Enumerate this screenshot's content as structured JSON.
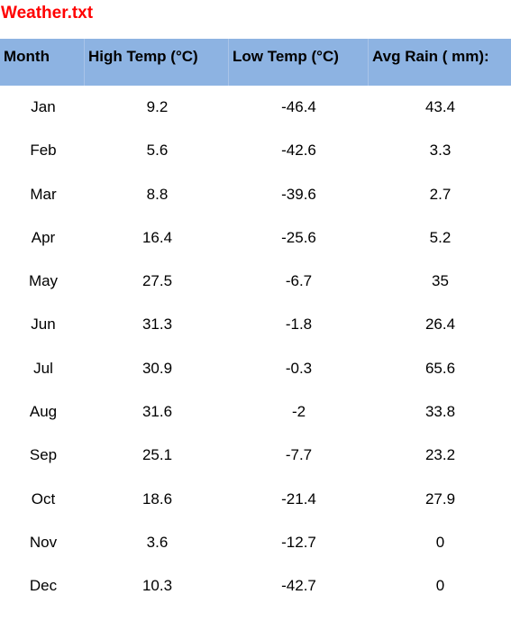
{
  "title": "Weather.txt",
  "headers": {
    "month": "Month",
    "high": "High Temp (°C)",
    "low": "Low Temp (°C)",
    "rain": "Avg Rain ( mm):"
  },
  "rows": [
    {
      "month": "Jan",
      "high": "9.2",
      "low": "-46.4",
      "rain": "43.4"
    },
    {
      "month": "Feb",
      "high": "5.6",
      "low": "-42.6",
      "rain": "3.3"
    },
    {
      "month": "Mar",
      "high": "8.8",
      "low": "-39.6",
      "rain": "2.7"
    },
    {
      "month": "Apr",
      "high": "16.4",
      "low": "-25.6",
      "rain": "5.2"
    },
    {
      "month": "May",
      "high": "27.5",
      "low": "-6.7",
      "rain": "35"
    },
    {
      "month": "Jun",
      "high": "31.3",
      "low": "-1.8",
      "rain": "26.4"
    },
    {
      "month": "Jul",
      "high": "30.9",
      "low": "-0.3",
      "rain": "65.6"
    },
    {
      "month": "Aug",
      "high": "31.6",
      "low": "-2",
      "rain": "33.8"
    },
    {
      "month": "Sep",
      "high": "25.1",
      "low": "-7.7",
      "rain": "23.2"
    },
    {
      "month": "Oct",
      "high": "18.6",
      "low": "-21.4",
      "rain": "27.9"
    },
    {
      "month": "Nov",
      "high": "3.6",
      "low": "-12.7",
      "rain": "0"
    },
    {
      "month": "Dec",
      "high": "10.3",
      "low": "-42.7",
      "rain": "0"
    }
  ],
  "colors": {
    "title": "#ff0000",
    "header_background": "#8db3e2"
  }
}
